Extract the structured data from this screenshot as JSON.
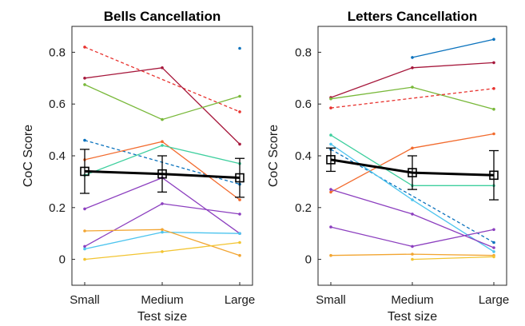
{
  "chart_data": [
    {
      "type": "line",
      "title": "Bells Cancellation",
      "xlabel": "Test size",
      "ylabel": "CoC Score",
      "categories": [
        "Small",
        "Medium",
        "Large"
      ],
      "ylim": [
        -0.1,
        0.9
      ],
      "yticks": [
        0,
        0.2,
        0.4,
        0.6,
        0.8
      ],
      "series": [
        {
          "values": [
            0.82,
            null,
            0.57
          ],
          "color": "#e8322e",
          "style": "dashed"
        },
        {
          "values": [
            0.7,
            0.74,
            0.445
          ],
          "color": "#a6173b",
          "style": "solid"
        },
        {
          "values": [
            0.675,
            0.54,
            0.63
          ],
          "color": "#78b839",
          "style": "solid"
        },
        {
          "values": [
            0.46,
            null,
            0.29
          ],
          "color": "#0a72bd",
          "style": "dashed"
        },
        {
          "values": [
            0.385,
            0.455,
            0.23
          ],
          "color": "#f26b2e",
          "style": "solid"
        },
        {
          "values": [
            0.325,
            0.44,
            0.37
          ],
          "color": "#3ecf9e",
          "style": "solid"
        },
        {
          "values": [
            0.195,
            0.315,
            0.1
          ],
          "color": "#8c3fbf",
          "style": "solid"
        },
        {
          "values": [
            0.05,
            0.215,
            0.175
          ],
          "color": "#8c3fbf",
          "style": "solid"
        },
        {
          "values": [
            0.04,
            0.105,
            0.1
          ],
          "color": "#4cc4ee",
          "style": "solid"
        },
        {
          "values": [
            0.11,
            0.115,
            0.015
          ],
          "color": "#f2a531",
          "style": "solid"
        },
        {
          "values": [
            0.0,
            0.03,
            0.065
          ],
          "color": "#f2c431",
          "style": "solid"
        },
        {
          "values": [
            null,
            null,
            0.815
          ],
          "color": "#0a72bd",
          "style": "solid"
        }
      ],
      "mean": {
        "values": [
          0.34,
          0.33,
          0.315
        ],
        "errors": [
          0.085,
          0.07,
          0.075
        ],
        "color": "#000000"
      }
    },
    {
      "type": "line",
      "title": "Letters Cancellation",
      "xlabel": "Test size",
      "ylabel": "CoC Score",
      "categories": [
        "Small",
        "Medium",
        "Large"
      ],
      "ylim": [
        -0.1,
        0.9
      ],
      "yticks": [
        0,
        0.2,
        0.4,
        0.6,
        0.8
      ],
      "series": [
        {
          "values": [
            null,
            0.78,
            0.85
          ],
          "color": "#0a72bd",
          "style": "solid"
        },
        {
          "values": [
            0.625,
            0.74,
            0.76
          ],
          "color": "#a6173b",
          "style": "solid"
        },
        {
          "values": [
            0.62,
            0.665,
            0.58
          ],
          "color": "#78b839",
          "style": "solid"
        },
        {
          "values": [
            0.585,
            null,
            0.66
          ],
          "color": "#e8322e",
          "style": "dashed"
        },
        {
          "values": [
            0.26,
            0.43,
            0.485
          ],
          "color": "#f26b2e",
          "style": "solid"
        },
        {
          "values": [
            0.48,
            0.285,
            0.285
          ],
          "color": "#3ecf9e",
          "style": "solid"
        },
        {
          "values": [
            0.425,
            null,
            0.065
          ],
          "color": "#0a72bd",
          "style": "dashed"
        },
        {
          "values": [
            0.445,
            0.23,
            0.03
          ],
          "color": "#4cc4ee",
          "style": "solid"
        },
        {
          "values": [
            0.27,
            0.175,
            0.045
          ],
          "color": "#8c3fbf",
          "style": "solid"
        },
        {
          "values": [
            0.125,
            0.05,
            0.115
          ],
          "color": "#8c3fbf",
          "style": "solid"
        },
        {
          "values": [
            0.015,
            0.02,
            0.015
          ],
          "color": "#f2a531",
          "style": "solid"
        },
        {
          "values": [
            null,
            0.0,
            0.01
          ],
          "color": "#f2c431",
          "style": "solid"
        }
      ],
      "mean": {
        "values": [
          0.385,
          0.335,
          0.325
        ],
        "errors": [
          0.045,
          0.065,
          0.095
        ],
        "color": "#000000"
      }
    }
  ]
}
